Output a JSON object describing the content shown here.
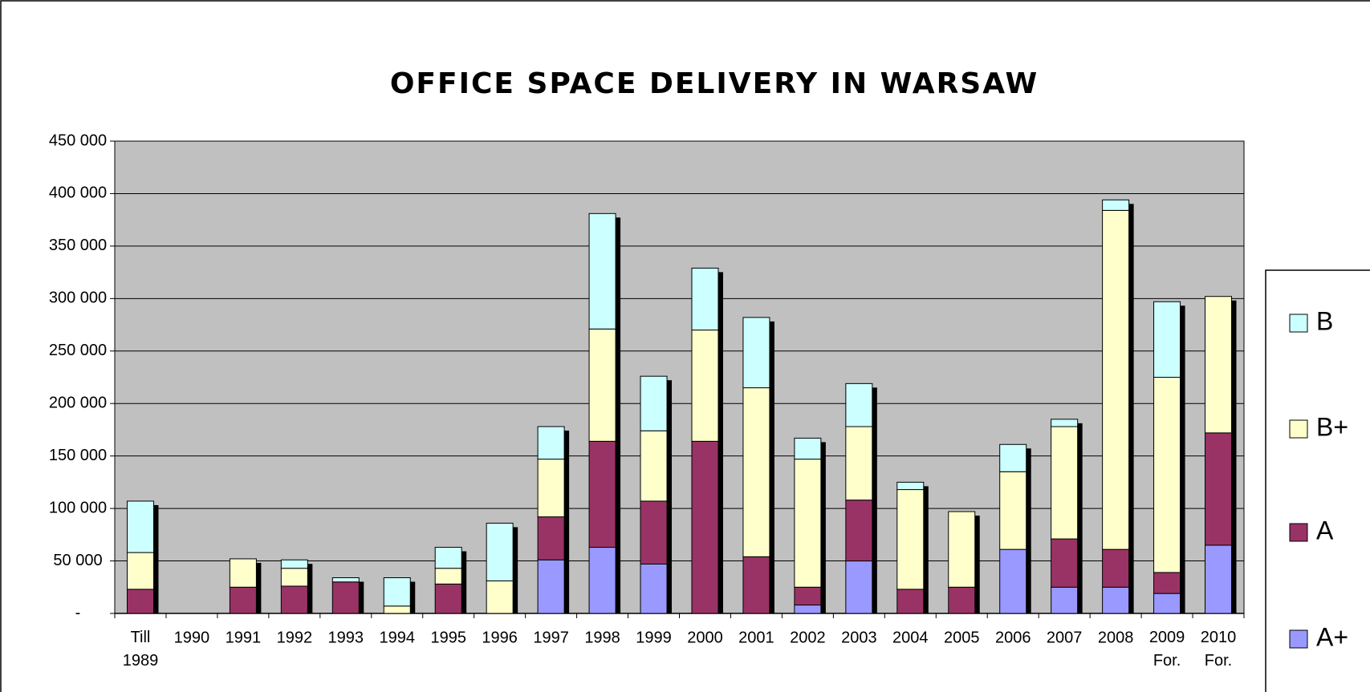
{
  "chart_data": {
    "type": "stacked_bar",
    "title": "OFFICE SPACE DELIVERY IN WARSAW",
    "categories": [
      "Till 1989",
      "1990",
      "1991",
      "1992",
      "1993",
      "1994",
      "1995",
      "1996",
      "1997",
      "1998",
      "1999",
      "2000",
      "2001",
      "2002",
      "2003",
      "2004",
      "2005",
      "2006",
      "2007",
      "2008",
      "2009 For.",
      "2010 For."
    ],
    "series": [
      {
        "name": "A+",
        "color": "#9999ff",
        "values": [
          0,
          0,
          0,
          0,
          0,
          0,
          0,
          0,
          51000,
          63000,
          47000,
          0,
          0,
          8000,
          50000,
          0,
          0,
          61000,
          25000,
          25000,
          19000,
          65000
        ]
      },
      {
        "name": "A",
        "color": "#993366",
        "values": [
          23000,
          0,
          25000,
          26000,
          30000,
          0,
          28000,
          0,
          41000,
          101000,
          60000,
          164000,
          54000,
          17000,
          58000,
          23000,
          25000,
          0,
          46000,
          36000,
          20000,
          107000
        ]
      },
      {
        "name": "B+",
        "color": "#ffffcc",
        "values": [
          35000,
          0,
          27000,
          17000,
          0,
          7000,
          15000,
          31000,
          55000,
          107000,
          67000,
          106000,
          161000,
          122000,
          70000,
          95000,
          72000,
          74000,
          107000,
          323000,
          186000,
          130000
        ]
      },
      {
        "name": "B",
        "color": "#ccffff",
        "values": [
          49000,
          0,
          0,
          8000,
          4000,
          27000,
          20000,
          55000,
          31000,
          110000,
          52000,
          59000,
          67000,
          20000,
          41000,
          7000,
          0,
          26000,
          7000,
          10000,
          72000,
          0
        ]
      }
    ],
    "ylim": [
      0,
      450000
    ],
    "yticks": [
      {
        "value": 0,
        "label": "-"
      },
      {
        "value": 50000,
        "label": "50 000"
      },
      {
        "value": 100000,
        "label": "100 000"
      },
      {
        "value": 150000,
        "label": "150 000"
      },
      {
        "value": 200000,
        "label": "200 000"
      },
      {
        "value": 250000,
        "label": "250 000"
      },
      {
        "value": 300000,
        "label": "300 000"
      },
      {
        "value": 350000,
        "label": "350 000"
      },
      {
        "value": 400000,
        "label": "400 000"
      },
      {
        "value": 450000,
        "label": "450 000"
      }
    ],
    "grid": true,
    "legend": "right",
    "plot_background": "#c0c0c0"
  }
}
